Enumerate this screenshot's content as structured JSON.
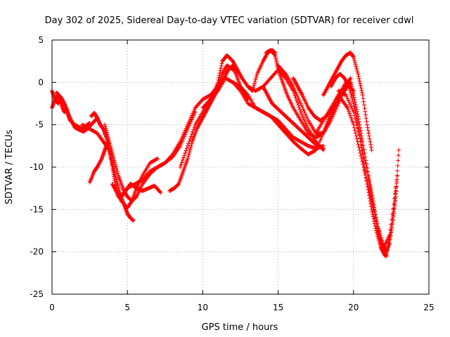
{
  "chart_data": {
    "type": "scatter",
    "title": "Day 302 of 2025, Sidereal Day-to-day VTEC variation (SDTVAR) for receiver cdwl",
    "xlabel": "GPS time / hours",
    "ylabel": "SDTVAR / TECUs",
    "xlim": [
      0,
      25
    ],
    "ylim": [
      -25,
      5
    ],
    "x_ticks": [
      0,
      5,
      10,
      15,
      20,
      25
    ],
    "y_ticks": [
      -25,
      -20,
      -15,
      -10,
      -5,
      0,
      5
    ],
    "grid": true,
    "marker": "plus",
    "colors": {
      "series": "#ff0000",
      "grid": "#a0a0a0",
      "axes": "#000000"
    },
    "series": [
      {
        "x": [
          0.0,
          0.2,
          0.4,
          0.6,
          0.8,
          1.0,
          1.2,
          1.5,
          1.8,
          2.0,
          2.2,
          2.5
        ],
        "y": [
          -1.0,
          -2.0,
          -2.5,
          -1.8,
          -2.5,
          -3.5,
          -4.5,
          -5.0,
          -5.3,
          -5.5,
          -5.2,
          -4.8
        ]
      },
      {
        "x": [
          0.0,
          0.2,
          0.4,
          0.6,
          0.8,
          1.0
        ],
        "y": [
          -3.0,
          -2.0,
          -1.5,
          -2.5,
          -3.5,
          -3.2
        ]
      },
      {
        "x": [
          0.3,
          0.6,
          0.9,
          1.2,
          1.5,
          1.8,
          2.1,
          2.4,
          2.7,
          3.0
        ],
        "y": [
          -1.2,
          -1.8,
          -2.8,
          -4.2,
          -5.3,
          -5.6,
          -5.8,
          -5.4,
          -4.8,
          -4.2
        ]
      },
      {
        "x": [
          2.6,
          2.8,
          3.0,
          3.2,
          3.4,
          3.6,
          3.8,
          4.0,
          4.2,
          4.4,
          4.6,
          4.8,
          5.0,
          5.2,
          5.4,
          5.6,
          6.0,
          6.4,
          6.8,
          7.2
        ],
        "y": [
          -4.0,
          -3.6,
          -4.2,
          -5.0,
          -5.5,
          -6.5,
          -8.0,
          -10.0,
          -12.0,
          -13.5,
          -13.5,
          -13.0,
          -12.5,
          -12.0,
          -12.2,
          -12.5,
          -12.8,
          -12.5,
          -12.2,
          -13.0
        ]
      },
      {
        "x": [
          2.0,
          2.5,
          3.0,
          3.4,
          3.8,
          4.0,
          4.2,
          4.5,
          4.8,
          5.0,
          5.2,
          5.4
        ],
        "y": [
          -5.0,
          -5.5,
          -6.0,
          -7.0,
          -8.0,
          -9.5,
          -11.0,
          -13.0,
          -14.5,
          -15.5,
          -16.0,
          -16.3
        ]
      },
      {
        "x": [
          2.5,
          2.8,
          3.0,
          3.3,
          3.5,
          3.7
        ],
        "y": [
          -11.8,
          -10.5,
          -10.0,
          -9.0,
          -8.0,
          -7.0
        ]
      },
      {
        "x": [
          3.5,
          3.8,
          4.1,
          4.4,
          4.7,
          5.0,
          5.3,
          5.6,
          6.0,
          6.5,
          7.0,
          7.5,
          8.0,
          8.5,
          9.0,
          9.5
        ],
        "y": [
          -5.0,
          -7.0,
          -9.0,
          -11.0,
          -12.5,
          -13.5,
          -14.0,
          -13.5,
          -12.0,
          -10.8,
          -10.0,
          -9.5,
          -8.8,
          -7.5,
          -5.5,
          -3.5
        ]
      },
      {
        "x": [
          4.0,
          4.3,
          4.6,
          5.0,
          5.3,
          5.6,
          6.0,
          6.5,
          7.0
        ],
        "y": [
          -12.0,
          -13.0,
          -14.0,
          -14.8,
          -14.0,
          -12.5,
          -11.0,
          -9.5,
          -9.0
        ]
      },
      {
        "x": [
          5.0,
          5.5,
          6.0,
          6.5,
          7.0,
          7.5,
          8.0,
          8.5,
          9.0,
          9.5,
          10.0,
          10.5,
          11.0,
          11.3,
          11.6,
          12.0
        ],
        "y": [
          -12.5,
          -12.0,
          -11.5,
          -10.5,
          -10.0,
          -9.5,
          -8.5,
          -7.0,
          -5.0,
          -3.0,
          -2.0,
          -1.5,
          -0.5,
          1.0,
          2.0,
          1.5
        ]
      },
      {
        "x": [
          7.8,
          8.1,
          8.4,
          8.7,
          9.0,
          9.3,
          9.6,
          9.9,
          10.2,
          10.5,
          10.8,
          11.1,
          11.4,
          11.7,
          12.0,
          12.2,
          12.5,
          12.8,
          13.0
        ],
        "y": [
          -12.8,
          -12.5,
          -12.0,
          -10.5,
          -9.0,
          -7.0,
          -5.5,
          -4.5,
          -3.5,
          -2.5,
          -1.5,
          -0.5,
          0.5,
          1.5,
          2.0,
          1.0,
          -0.5,
          -1.5,
          -2.0
        ]
      },
      {
        "x": [
          8.5,
          9.0,
          9.5,
          10.0,
          10.5,
          11.0,
          11.3,
          11.6,
          12.0,
          12.3,
          12.6,
          13.0,
          13.3,
          13.6,
          14.0,
          14.3,
          14.6,
          14.8
        ],
        "y": [
          -10.0,
          -7.5,
          -5.0,
          -3.5,
          -2.0,
          0.0,
          2.5,
          3.2,
          2.5,
          1.5,
          0.5,
          -0.5,
          -1.0,
          1.0,
          2.5,
          3.5,
          3.8,
          3.5
        ]
      },
      {
        "x": [
          10.0,
          10.5,
          11.0,
          11.5,
          12.0,
          12.5,
          13.0,
          13.5,
          14.0,
          14.5,
          15.0,
          15.5,
          16.0,
          16.5,
          17.0,
          17.5,
          18.0
        ],
        "y": [
          -3.0,
          -2.0,
          -1.0,
          0.5,
          0.0,
          -1.0,
          -2.5,
          -3.0,
          -3.5,
          -4.0,
          -4.5,
          -5.5,
          -6.5,
          -7.0,
          -7.5,
          -7.8,
          -7.5
        ]
      },
      {
        "x": [
          12.0,
          12.5,
          13.0,
          13.5,
          14.0,
          14.5,
          15.0,
          15.5,
          16.0,
          16.5,
          17.0,
          17.5,
          18.0,
          18.5,
          19.0,
          19.5,
          20.0
        ],
        "y": [
          0.0,
          -0.5,
          -1.5,
          -3.0,
          -3.5,
          -4.0,
          -5.0,
          -6.0,
          -7.0,
          -7.8,
          -8.5,
          -8.0,
          -6.0,
          -3.5,
          -1.5,
          0.0,
          -1.0
        ]
      },
      {
        "x": [
          13.0,
          13.5,
          14.0,
          14.5,
          15.0,
          15.5,
          16.0,
          16.5,
          17.0,
          17.5,
          18.0
        ],
        "y": [
          -0.5,
          -1.0,
          -0.5,
          0.5,
          1.5,
          0.5,
          -1.0,
          -3.5,
          -5.5,
          -7.0,
          -8.0
        ]
      },
      {
        "x": [
          14.0,
          14.3,
          14.6,
          14.9,
          15.2,
          15.5,
          15.8,
          16.1,
          16.4,
          16.7,
          17.0,
          17.3,
          17.6,
          18.0
        ],
        "y": [
          -0.5,
          -1.5,
          -2.5,
          -3.0,
          -3.5,
          -4.0,
          -4.5,
          -5.0,
          -5.5,
          -6.0,
          -6.5,
          -7.0,
          -7.5,
          -7.8
        ]
      },
      {
        "x": [
          14.2,
          14.5,
          14.8,
          15.0,
          15.3,
          15.6,
          16.0,
          16.5,
          17.0,
          17.5,
          18.0,
          18.5,
          19.0,
          19.5
        ],
        "y": [
          3.5,
          3.8,
          3.2,
          1.5,
          0.0,
          -1.5,
          -3.0,
          -4.5,
          -6.0,
          -6.5,
          -6.0,
          -4.5,
          -2.5,
          -0.5
        ]
      },
      {
        "x": [
          15.0,
          15.5,
          16.0,
          16.5,
          17.0,
          17.5,
          18.0,
          18.5,
          19.0,
          19.5,
          19.8
        ],
        "y": [
          2.0,
          1.0,
          -0.5,
          -2.5,
          -4.5,
          -6.0,
          -6.0,
          -4.0,
          -2.0,
          -0.5,
          0.5
        ]
      },
      {
        "x": [
          16.0,
          16.3,
          16.6,
          17.0,
          17.4,
          17.8,
          18.2,
          18.6,
          19.0,
          19.4,
          19.8
        ],
        "y": [
          0.5,
          -0.5,
          -1.5,
          -3.0,
          -4.0,
          -4.5,
          -4.0,
          -3.0,
          -2.0,
          -1.0,
          0.0
        ]
      },
      {
        "x": [
          18.0,
          18.3,
          18.6,
          18.9,
          19.2,
          19.5,
          19.8,
          20.0,
          20.3,
          20.6,
          20.9,
          21.2
        ],
        "y": [
          -1.5,
          -0.5,
          0.5,
          1.5,
          2.5,
          3.2,
          3.5,
          3.0,
          1.0,
          -1.5,
          -5.0,
          -8.0
        ]
      },
      {
        "x": [
          17.5,
          18.0,
          18.5,
          19.0,
          19.5,
          19.8,
          20.0,
          20.3,
          20.6,
          21.0,
          21.3,
          21.6,
          21.9,
          22.2
        ],
        "y": [
          -6.0,
          -4.5,
          -3.0,
          -1.5,
          -0.5,
          0.0,
          -1.5,
          -4.0,
          -7.0,
          -11.0,
          -14.0,
          -17.5,
          -19.5,
          -20.5
        ]
      },
      {
        "x": [
          18.5,
          18.8,
          19.1,
          19.4,
          19.7,
          20.0,
          20.3,
          20.6,
          20.9,
          21.2,
          21.5,
          21.8,
          22.1,
          22.4,
          22.7,
          22.9
        ],
        "y": [
          -0.5,
          0.5,
          1.0,
          0.5,
          -0.5,
          -2.5,
          -5.0,
          -8.5,
          -12.0,
          -15.0,
          -17.5,
          -19.5,
          -20.5,
          -19.0,
          -15.0,
          -11.0
        ]
      },
      {
        "x": [
          19.0,
          19.5,
          20.0,
          20.5,
          21.0,
          21.3,
          21.6,
          21.9,
          22.2,
          22.5,
          22.8,
          23.0
        ],
        "y": [
          -1.0,
          -1.5,
          -3.5,
          -7.0,
          -11.5,
          -14.5,
          -17.0,
          -19.0,
          -20.0,
          -17.5,
          -13.5,
          -8.0
        ]
      },
      {
        "x": [
          19.2,
          19.6,
          20.0,
          20.4,
          20.8,
          21.2,
          21.6,
          22.0,
          22.4,
          22.8
        ],
        "y": [
          -2.0,
          -3.0,
          -5.0,
          -8.0,
          -11.0,
          -14.0,
          -17.0,
          -19.5,
          -18.0,
          -12.5
        ]
      }
    ]
  }
}
